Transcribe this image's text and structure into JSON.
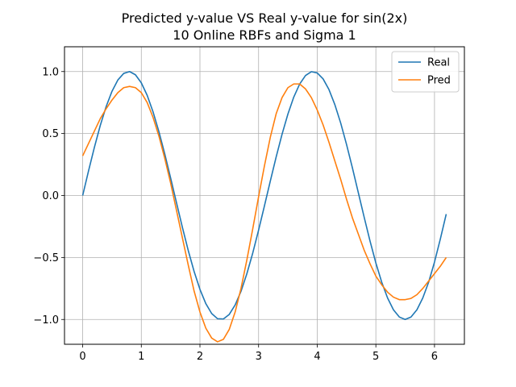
{
  "chart_data": {
    "type": "line",
    "title": "Predicted y-value VS Real y-value for sin(2x)",
    "subtitle": "10 Online RBFs and Sigma 1",
    "xlabel": "",
    "ylabel": "",
    "xlim": [
      -0.31,
      6.51
    ],
    "ylim": [
      -1.2,
      1.2
    ],
    "xticks": [
      0,
      1,
      2,
      3,
      4,
      5,
      6
    ],
    "xtick_labels": [
      "0",
      "1",
      "2",
      "3",
      "4",
      "5",
      "6"
    ],
    "yticks": [
      -1.0,
      -0.5,
      0.0,
      0.5,
      1.0
    ],
    "ytick_labels": [
      "−1.0",
      "−0.5",
      "0.0",
      "0.5",
      "1.0"
    ],
    "grid": true,
    "legend_position": "top-right",
    "x": [
      0,
      0.1,
      0.2,
      0.3,
      0.4,
      0.5,
      0.6,
      0.7,
      0.8,
      0.9,
      1.0,
      1.1,
      1.2,
      1.3,
      1.4,
      1.5,
      1.6,
      1.7,
      1.8,
      1.9,
      2.0,
      2.1,
      2.2,
      2.3,
      2.4,
      2.5,
      2.6,
      2.7,
      2.8,
      2.9,
      3.0,
      3.1,
      3.2,
      3.3,
      3.4,
      3.5,
      3.6,
      3.7,
      3.8,
      3.9,
      4.0,
      4.1,
      4.2,
      4.3,
      4.4,
      4.5,
      4.6,
      4.7,
      4.8,
      4.9,
      5.0,
      5.1,
      5.2,
      5.3,
      5.4,
      5.5,
      5.6,
      5.7,
      5.8,
      5.9,
      6.0,
      6.1,
      6.2
    ],
    "series": [
      {
        "name": "Real",
        "color": "#1f77b4",
        "values": [
          0.0,
          0.199,
          0.389,
          0.565,
          0.717,
          0.841,
          0.932,
          0.985,
          1.0,
          0.974,
          0.909,
          0.808,
          0.675,
          0.516,
          0.335,
          0.141,
          -0.058,
          -0.256,
          -0.443,
          -0.612,
          -0.757,
          -0.872,
          -0.952,
          -0.994,
          -0.996,
          -0.959,
          -0.883,
          -0.773,
          -0.631,
          -0.465,
          -0.279,
          -0.083,
          0.117,
          0.312,
          0.494,
          0.657,
          0.794,
          0.899,
          0.968,
          0.999,
          0.989,
          0.941,
          0.855,
          0.734,
          0.585,
          0.412,
          0.223,
          0.025,
          -0.174,
          -0.366,
          -0.544,
          -0.699,
          -0.827,
          -0.922,
          -0.98,
          -1.0,
          -0.98,
          -0.922,
          -0.827,
          -0.699,
          -0.537,
          -0.35,
          -0.15
        ]
      },
      {
        "name": "Pred",
        "color": "#ff7f0e",
        "values": [
          0.32,
          0.42,
          0.52,
          0.62,
          0.7,
          0.77,
          0.83,
          0.87,
          0.88,
          0.87,
          0.83,
          0.75,
          0.63,
          0.48,
          0.3,
          0.1,
          -0.12,
          -0.34,
          -0.56,
          -0.77,
          -0.94,
          -1.07,
          -1.15,
          -1.18,
          -1.16,
          -1.08,
          -0.94,
          -0.75,
          -0.52,
          -0.27,
          -0.01,
          0.24,
          0.47,
          0.66,
          0.79,
          0.87,
          0.9,
          0.9,
          0.86,
          0.79,
          0.69,
          0.57,
          0.43,
          0.28,
          0.13,
          -0.03,
          -0.18,
          -0.31,
          -0.44,
          -0.55,
          -0.65,
          -0.72,
          -0.78,
          -0.82,
          -0.84,
          -0.84,
          -0.83,
          -0.8,
          -0.75,
          -0.69,
          -0.63,
          -0.57,
          -0.5
        ]
      }
    ]
  }
}
